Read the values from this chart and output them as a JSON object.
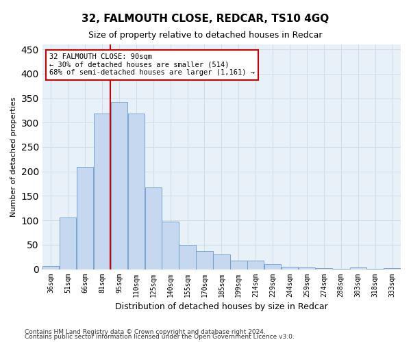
{
  "title1": "32, FALMOUTH CLOSE, REDCAR, TS10 4GQ",
  "title2": "Size of property relative to detached houses in Redcar",
  "xlabel": "Distribution of detached houses by size in Redcar",
  "ylabel": "Number of detached properties",
  "categories": [
    "36sqm",
    "51sqm",
    "66sqm",
    "81sqm",
    "95sqm",
    "110sqm",
    "125sqm",
    "140sqm",
    "155sqm",
    "170sqm",
    "185sqm",
    "199sqm",
    "214sqm",
    "229sqm",
    "244sqm",
    "259sqm",
    "274sqm",
    "288sqm",
    "303sqm",
    "318sqm",
    "333sqm"
  ],
  "values": [
    7,
    106,
    210,
    318,
    343,
    318,
    167,
    98,
    50,
    37,
    30,
    18,
    17,
    10,
    5,
    4,
    2,
    1,
    3,
    1,
    2
  ],
  "bar_color": "#c5d8ef",
  "bar_edge_color": "#6699cc",
  "annotation_line1": "32 FALMOUTH CLOSE: 90sqm",
  "annotation_line2": "← 30% of detached houses are smaller (514)",
  "annotation_line3": "68% of semi-detached houses are larger (1,161) →",
  "annotation_box_color": "#ffffff",
  "annotation_box_edge": "#cc0000",
  "vline_color": "#cc0000",
  "vline_x_idx": 4,
  "ylim": [
    0,
    460
  ],
  "yticks": [
    0,
    50,
    100,
    150,
    200,
    250,
    300,
    350,
    400,
    450
  ],
  "grid_color": "#d0dcea",
  "bg_color": "#e8f0f8",
  "title1_fontsize": 11,
  "title2_fontsize": 9,
  "footer1": "Contains HM Land Registry data © Crown copyright and database right 2024.",
  "footer2": "Contains public sector information licensed under the Open Government Licence v3.0."
}
